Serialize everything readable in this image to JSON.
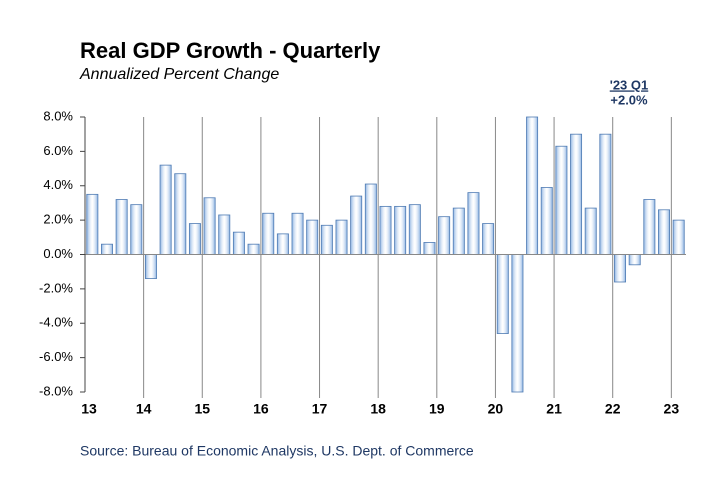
{
  "chart_data": {
    "type": "bar",
    "title": "Real GDP Growth - Quarterly",
    "subtitle": "Annualized Percent Change",
    "annotation": {
      "heading": "'23 Q1",
      "text": "+2.0%"
    },
    "source": "Source: Bureau of Economic Analysis, U.S. Dept. of Commerce",
    "categories": [
      "13",
      null,
      null,
      null,
      "14",
      null,
      null,
      null,
      "15",
      null,
      null,
      null,
      "16",
      null,
      null,
      null,
      "17",
      null,
      null,
      null,
      "18",
      null,
      null,
      null,
      "19",
      null,
      null,
      null,
      "20",
      null,
      null,
      null,
      "21",
      null,
      null,
      null,
      "22",
      null,
      null,
      null,
      "23"
    ],
    "values": [
      3.5,
      0.6,
      3.2,
      2.9,
      -1.4,
      5.2,
      4.7,
      1.8,
      3.3,
      2.3,
      1.3,
      0.6,
      2.4,
      1.2,
      2.4,
      2.0,
      1.7,
      2.0,
      3.4,
      4.1,
      2.8,
      2.8,
      2.9,
      0.7,
      2.2,
      2.7,
      3.6,
      1.8,
      -4.6,
      -8.0,
      8.0,
      3.9,
      6.3,
      7.0,
      2.7,
      7.0,
      -1.6,
      -0.6,
      3.2,
      2.6,
      2.0
    ],
    "color": "#8db3e2",
    "ylim": [
      -8,
      8
    ],
    "yticks": [
      {
        "value": -8,
        "label": "-8.0%"
      },
      {
        "value": -6,
        "label": "-6.0%"
      },
      {
        "value": -4,
        "label": "-4.0%"
      },
      {
        "value": -2,
        "label": "-2.0%"
      },
      {
        "value": 0,
        "label": "0.0%"
      },
      {
        "value": 2,
        "label": "2.0%"
      },
      {
        "value": 4,
        "label": "4.0%"
      },
      {
        "value": 6,
        "label": "6.0%"
      },
      {
        "value": 8,
        "label": "8.0%"
      }
    ]
  }
}
